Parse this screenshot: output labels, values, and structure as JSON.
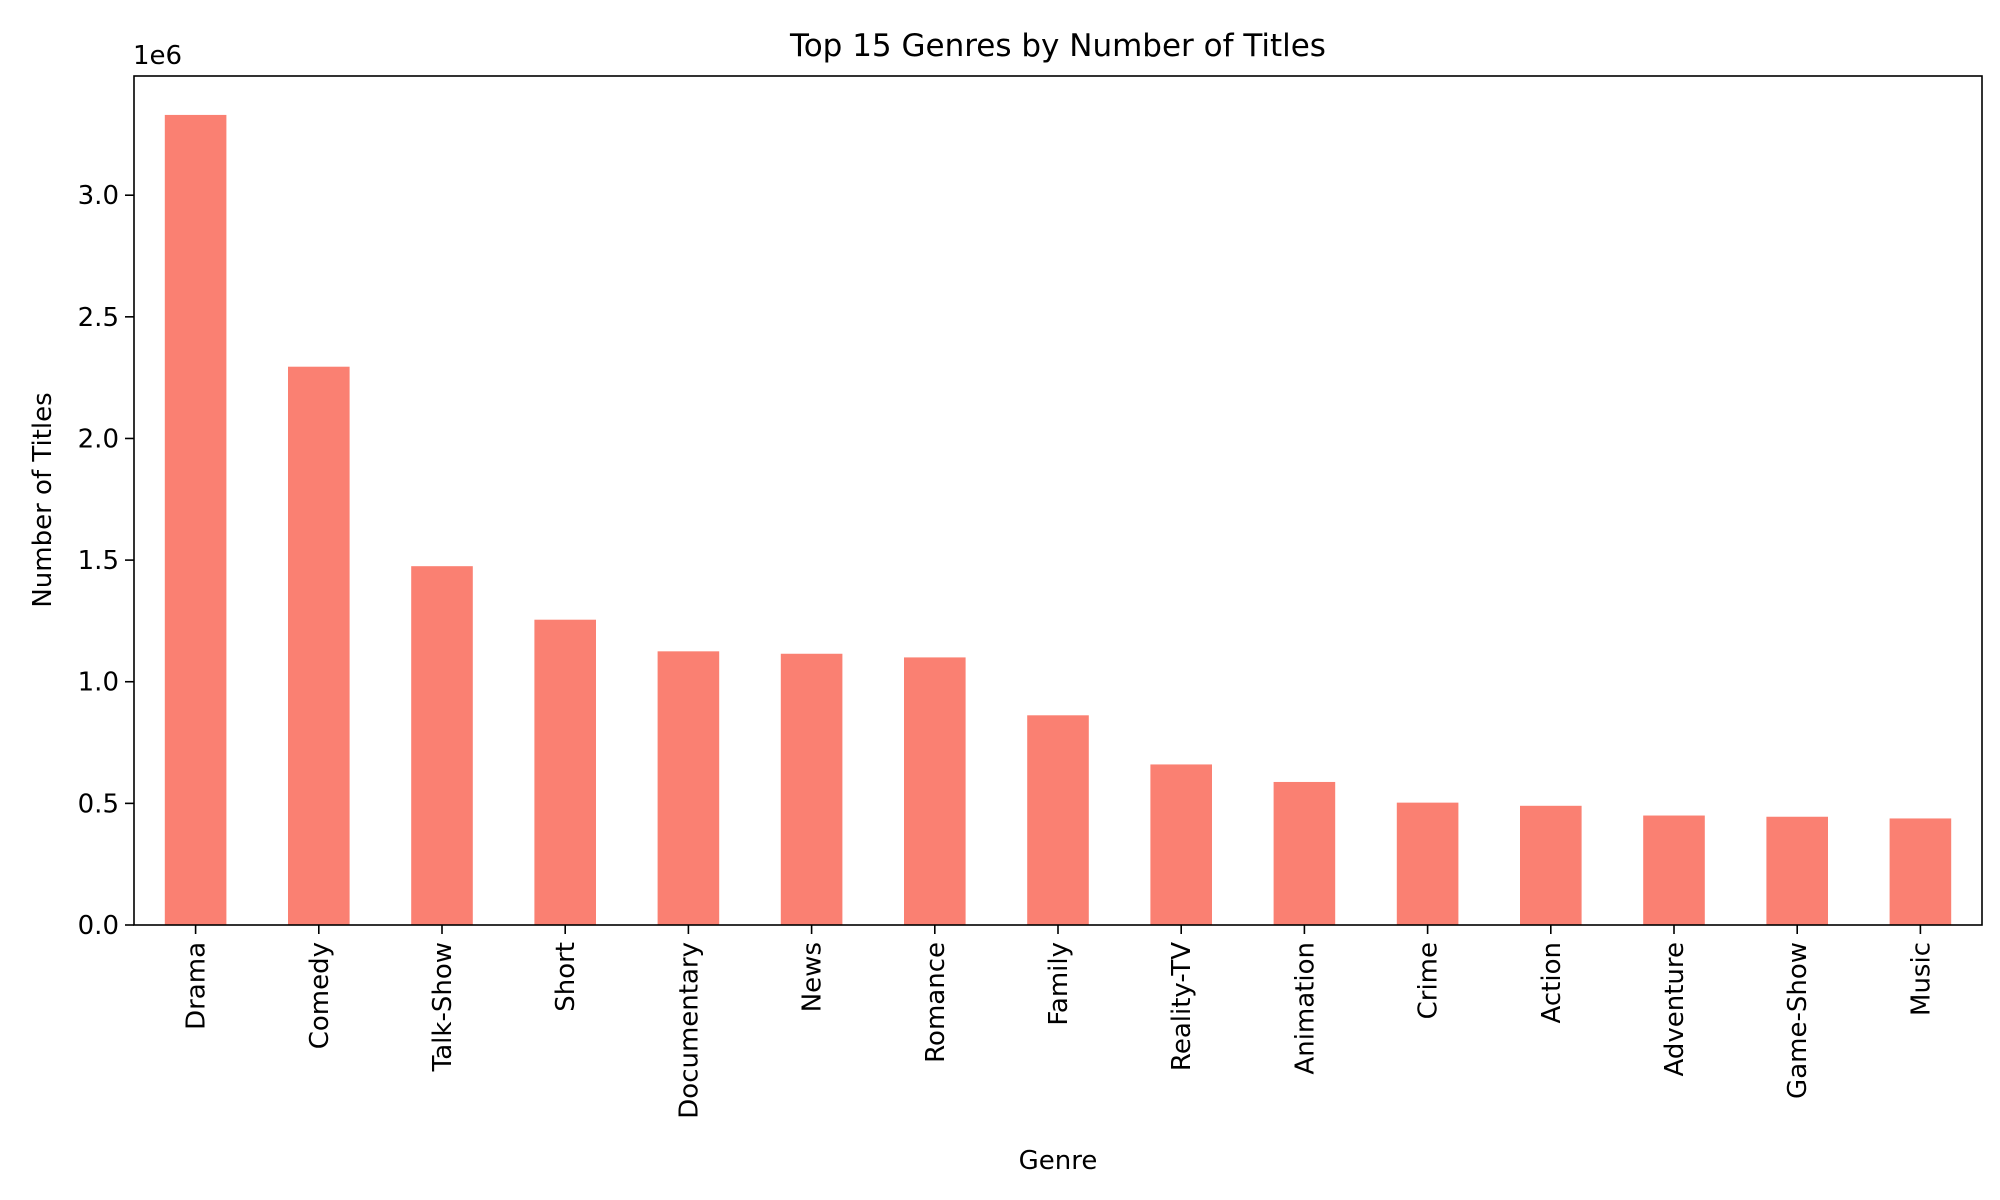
{
  "chart_data": {
    "type": "bar",
    "title": "Top 15 Genres by Number of Titles",
    "xlabel": "Genre",
    "ylabel": "Number of Titles",
    "y_offset_label": "1e6",
    "categories": [
      "Drama",
      "Comedy",
      "Talk-Show",
      "Short",
      "Documentary",
      "News",
      "Romance",
      "Family",
      "Reality-TV",
      "Animation",
      "Crime",
      "Action",
      "Adventure",
      "Game-Show",
      "Music"
    ],
    "values": [
      3330000,
      2295000,
      1475000,
      1255000,
      1125000,
      1115000,
      1100000,
      862000,
      660000,
      588000,
      503000,
      490000,
      450000,
      445000,
      438000
    ],
    "ylim": [
      0,
      3490000
    ],
    "yticks": [
      0,
      500000,
      1000000,
      1500000,
      2000000,
      2500000,
      3000000
    ],
    "ytick_labels": [
      "0.0",
      "0.5",
      "1.0",
      "1.5",
      "2.0",
      "2.5",
      "3.0"
    ],
    "bar_color": "#fa8072",
    "grid": false,
    "legend": "none"
  }
}
